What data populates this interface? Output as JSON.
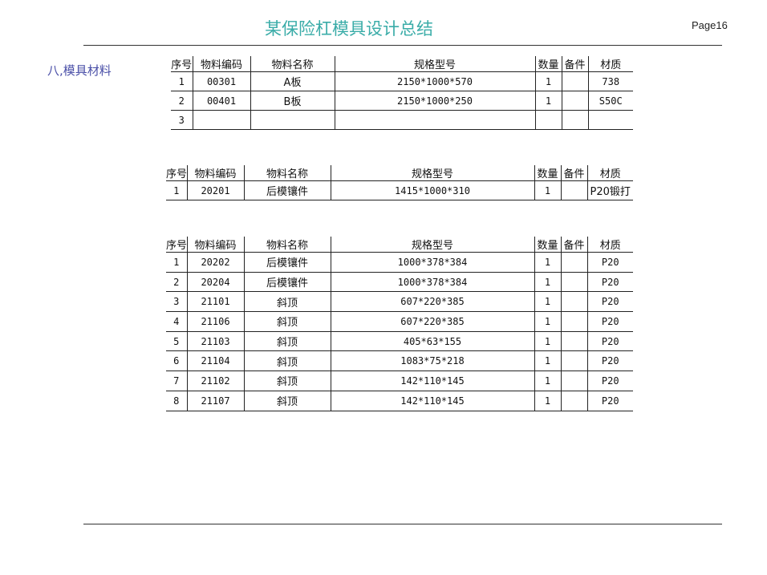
{
  "header": {
    "title": "某保险杠模具设计总结",
    "page": "Page16"
  },
  "section_title": "八,模具材料",
  "columns": [
    "序号",
    "物料编码",
    "物料名称",
    "规格型号",
    "数量",
    "备件",
    "材质"
  ],
  "tables": [
    {
      "rows": [
        [
          "1",
          "00301",
          "A板",
          "2150*1000*570",
          "1",
          "",
          "738"
        ],
        [
          "2",
          "00401",
          "B板",
          "2150*1000*250",
          "1",
          "",
          "S50C"
        ],
        [
          "3",
          "",
          "",
          "",
          "",
          "",
          ""
        ]
      ]
    },
    {
      "rows": [
        [
          "1",
          "20201",
          "后模镶件",
          "1415*1000*310",
          "1",
          "",
          "P20锻打"
        ]
      ]
    },
    {
      "rows": [
        [
          "1",
          "20202",
          "后模镶件",
          "1000*378*384",
          "1",
          "",
          "P20"
        ],
        [
          "2",
          "20204",
          "后模镶件",
          "1000*378*384",
          "1",
          "",
          "P20"
        ],
        [
          "3",
          "21101",
          "斜顶",
          "607*220*385",
          "1",
          "",
          "P20"
        ],
        [
          "4",
          "21106",
          "斜顶",
          "607*220*385",
          "1",
          "",
          "P20"
        ],
        [
          "5",
          "21103",
          "斜顶",
          "405*63*155",
          "1",
          "",
          "P20"
        ],
        [
          "6",
          "21104",
          "斜顶",
          "1083*75*218",
          "1",
          "",
          "P20"
        ],
        [
          "7",
          "21102",
          "斜顶",
          "142*110*145",
          "1",
          "",
          "P20"
        ],
        [
          "8",
          "21107",
          "斜顶",
          "142*110*145",
          "1",
          "",
          "P20"
        ]
      ]
    }
  ]
}
